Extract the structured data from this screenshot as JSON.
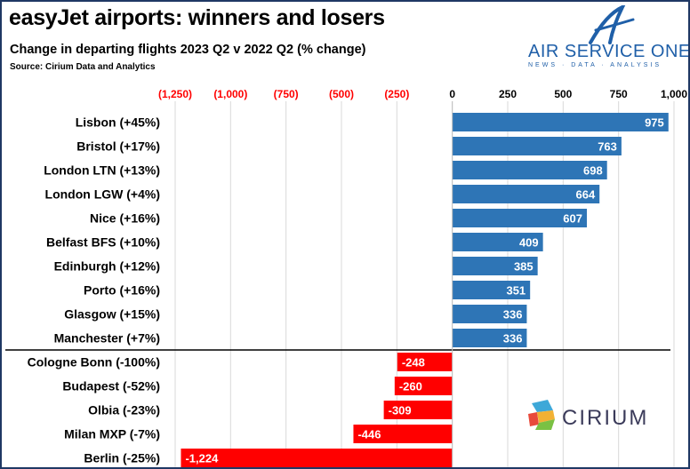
{
  "header": {
    "title": "easyJet airports: winners and losers",
    "subtitle": "Change in departing flights 2023 Q2 v 2022 Q2 (% change)",
    "source": "Source: Cirium Data and Analytics"
  },
  "logos": {
    "air_service_one": {
      "name": "AIR SERVICE ONE",
      "tagline": "NEWS · DATA · ANALYSIS"
    },
    "cirium": {
      "name": "CIRIUM"
    }
  },
  "colors": {
    "positive": "#2e75b6",
    "negative": "#ff0000",
    "negative_tick_label": "#ff0000",
    "frame": "#1f3864",
    "aso_brand": "#1f5fa8"
  },
  "chart_data": {
    "type": "bar",
    "orientation": "horizontal",
    "title": "easyJet airports: winners and losers",
    "subtitle": "Change in departing flights 2023 Q2 v 2022 Q2 (% change)",
    "categories": [
      "Lisbon (+45%)",
      "Bristol (+17%)",
      "London LTN (+13%)",
      "London LGW (+4%)",
      "Nice (+16%)",
      "Belfast BFS (+10%)",
      "Edinburgh (+12%)",
      "Porto (+16%)",
      "Glasgow (+15%)",
      "Manchester (+7%)",
      "Cologne Bonn (-100%)",
      "Budapest (-52%)",
      "Olbia (-23%)",
      "Milan MXP (-7%)",
      "Berlin (-25%)"
    ],
    "values": [
      975,
      763,
      698,
      664,
      607,
      409,
      385,
      351,
      336,
      336,
      -248,
      -260,
      -309,
      -446,
      -1224
    ],
    "value_labels": [
      "975",
      "763",
      "698",
      "664",
      "607",
      "409",
      "385",
      "351",
      "336",
      "336",
      "-248",
      "-260",
      "-309",
      "-446",
      "-1,224"
    ],
    "xlim": [
      -1250,
      1000
    ],
    "x_ticks": [
      -1250,
      -1000,
      -750,
      -500,
      -250,
      0,
      250,
      500,
      750,
      1000
    ],
    "x_tick_labels": [
      "(1,250)",
      "(1,000)",
      "(750)",
      "(500)",
      "(250)",
      "0",
      "250",
      "500",
      "750",
      "1,000"
    ],
    "x_axis_position": "top",
    "grid": true,
    "legend": false,
    "separator_after_index": 9
  }
}
